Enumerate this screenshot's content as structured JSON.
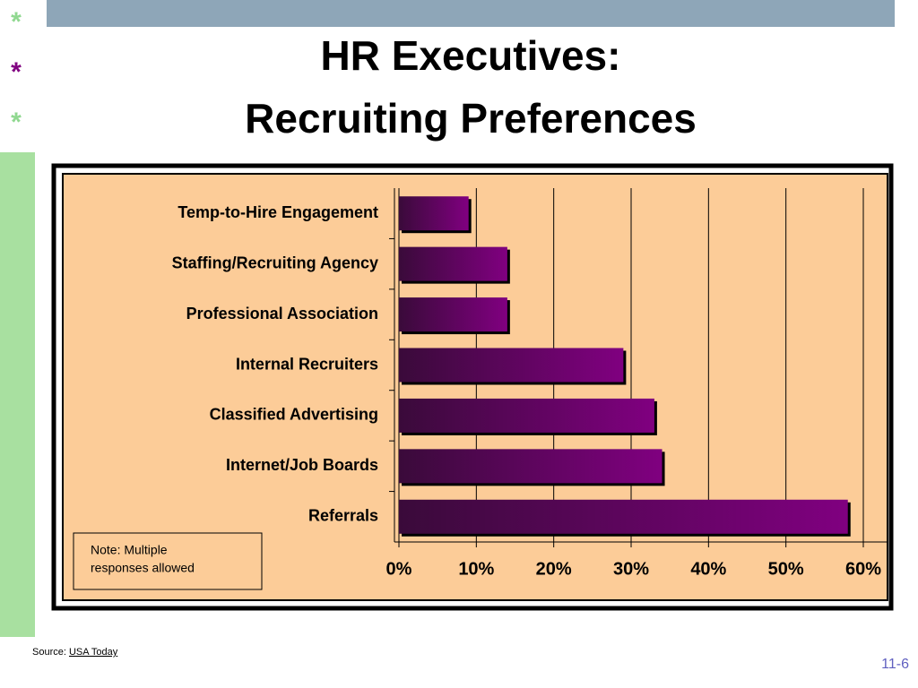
{
  "slide": {
    "stars": [
      "*",
      "*",
      "*"
    ],
    "title_lines": [
      "HR Executives:",
      "Recruiting Preferences"
    ],
    "note": [
      "Note: Multiple",
      "responses allowed"
    ],
    "source_prefix": "Source:",
    "source_link": "USA Today",
    "page_number": "11-6"
  },
  "chart_data": {
    "type": "bar",
    "orientation": "horizontal",
    "categories": [
      "Temp-to-Hire Engagement",
      "Staffing/Recruiting Agency",
      "Professional Association",
      "Internal Recruiters",
      "Classified Advertising",
      "Internet/Job Boards",
      "Referrals"
    ],
    "values": [
      9,
      14,
      14,
      29,
      33,
      34,
      58
    ],
    "color": "#800080",
    "xlim": [
      0,
      60
    ],
    "xticks": [
      {
        "value": 0,
        "label": "0%"
      },
      {
        "value": 10,
        "label": "10%"
      },
      {
        "value": 20,
        "label": "20%"
      },
      {
        "value": 30,
        "label": "30%"
      },
      {
        "value": 40,
        "label": "40%"
      },
      {
        "value": 50,
        "label": "50%"
      },
      {
        "value": 60,
        "label": "60%"
      }
    ],
    "grid": true
  }
}
